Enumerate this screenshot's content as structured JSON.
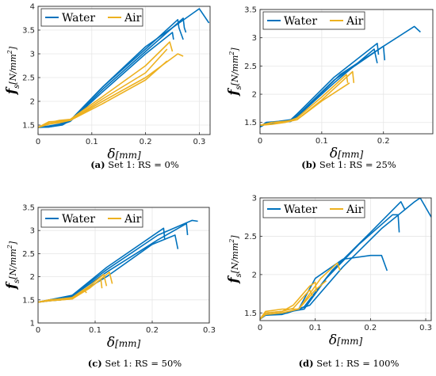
{
  "colors": {
    "water": "#0072BD",
    "air": "#EDB120",
    "axis": "#262626",
    "grid": "#e6e6e6"
  },
  "axis_text": {
    "x_symbol": "δ",
    "x_unit": "[mm]",
    "y_symbol": "f",
    "y_sub": "s",
    "y_unit_pre": "[N/mm",
    "y_unit_sup": "2",
    "y_unit_post": "]"
  },
  "chart_data": [
    {
      "id": "a",
      "type": "line",
      "caption_label": "(a)",
      "caption_text": "Set 1: RS = 0%",
      "xlim": [
        0,
        0.32
      ],
      "ylim": [
        1.3,
        4.0
      ],
      "xticks": [
        "0",
        "0.1",
        "0.2",
        "0.3"
      ],
      "xtick_values": [
        0,
        0.1,
        0.2,
        0.3
      ],
      "yticks": [
        "1.5",
        "2",
        "2.5",
        "3",
        "3.5",
        "4"
      ],
      "ytick_values": [
        1.5,
        2,
        2.5,
        3,
        3.5,
        4
      ],
      "grid": true,
      "legend": "top-left",
      "series": [
        {
          "name": "Water",
          "group": "water",
          "x": [
            0,
            0.02,
            0.04,
            0.06,
            0.12,
            0.2,
            0.26,
            0.262,
            0.27
          ],
          "y": [
            1.45,
            1.48,
            1.52,
            1.6,
            2.3,
            3.1,
            3.72,
            3.55,
            3.3
          ]
        },
        {
          "group": "water",
          "x": [
            0,
            0.02,
            0.04,
            0.06,
            0.12,
            0.2,
            0.27,
            0.272,
            0.275
          ],
          "y": [
            1.45,
            1.47,
            1.5,
            1.58,
            2.25,
            3.05,
            3.75,
            3.55,
            3.45
          ]
        },
        {
          "group": "water",
          "x": [
            0,
            0.02,
            0.045,
            0.06,
            0.12,
            0.2,
            0.3,
            0.318
          ],
          "y": [
            1.45,
            1.46,
            1.5,
            1.6,
            2.3,
            3.15,
            3.95,
            3.65
          ]
        },
        {
          "group": "water",
          "x": [
            0,
            0.02,
            0.04,
            0.06,
            0.12,
            0.2,
            0.25,
            0.252
          ],
          "y": [
            1.45,
            1.46,
            1.5,
            1.58,
            2.2,
            3.0,
            3.45,
            3.3
          ]
        },
        {
          "name": "Air",
          "group": "air",
          "x": [
            0,
            0.02,
            0.04,
            0.06,
            0.12,
            0.2,
            0.245,
            0.25
          ],
          "y": [
            1.45,
            1.55,
            1.6,
            1.62,
            2.1,
            2.75,
            3.25,
            3.05
          ]
        },
        {
          "group": "air",
          "x": [
            0,
            0.02,
            0.04,
            0.06,
            0.12,
            0.2,
            0.24
          ],
          "y": [
            1.45,
            1.57,
            1.58,
            1.6,
            2.05,
            2.6,
            3.1
          ]
        },
        {
          "group": "air",
          "x": [
            0,
            0.02,
            0.04,
            0.06,
            0.12,
            0.2,
            0.26,
            0.27
          ],
          "y": [
            1.45,
            1.55,
            1.57,
            1.6,
            2.0,
            2.5,
            3.0,
            2.95
          ]
        },
        {
          "group": "air",
          "x": [
            0,
            0.02,
            0.04,
            0.06,
            0.12,
            0.2,
            0.24
          ],
          "y": [
            1.45,
            1.52,
            1.55,
            1.6,
            1.95,
            2.45,
            2.85
          ]
        }
      ]
    },
    {
      "id": "b",
      "type": "line",
      "caption_label": "(b)",
      "caption_text": "Set 1: RS = 25%",
      "xlim": [
        0,
        0.28
      ],
      "ylim": [
        1.3,
        3.5
      ],
      "xticks": [
        "0",
        "0.1",
        "0.2"
      ],
      "xtick_values": [
        0,
        0.1,
        0.2
      ],
      "yticks": [
        "1.5",
        "2",
        "2.5",
        "3",
        "3.5"
      ],
      "ytick_values": [
        1.5,
        2,
        2.5,
        3,
        3.5
      ],
      "grid": true,
      "legend": "top-left",
      "series": [
        {
          "name": "Water",
          "group": "water",
          "x": [
            0,
            0.01,
            0.03,
            0.05,
            0.06,
            0.12,
            0.19,
            0.192
          ],
          "y": [
            1.42,
            1.5,
            1.52,
            1.55,
            1.65,
            2.3,
            2.9,
            2.7
          ]
        },
        {
          "group": "water",
          "x": [
            0,
            0.01,
            0.03,
            0.05,
            0.06,
            0.12,
            0.2,
            0.202
          ],
          "y": [
            1.42,
            1.5,
            1.5,
            1.55,
            1.62,
            2.25,
            2.85,
            2.6
          ]
        },
        {
          "group": "water",
          "x": [
            0,
            0.01,
            0.03,
            0.05,
            0.065,
            0.13,
            0.2,
            0.25,
            0.26
          ],
          "y": [
            1.42,
            1.48,
            1.5,
            1.52,
            1.65,
            2.35,
            2.85,
            3.2,
            3.1
          ]
        },
        {
          "group": "water",
          "x": [
            0,
            0.01,
            0.03,
            0.05,
            0.06,
            0.12,
            0.185,
            0.19
          ],
          "y": [
            1.42,
            1.48,
            1.5,
            1.52,
            1.6,
            2.2,
            2.8,
            2.55
          ]
        },
        {
          "name": "Air",
          "group": "air",
          "x": [
            0,
            0.02,
            0.04,
            0.06,
            0.1,
            0.15,
            0.152
          ],
          "y": [
            1.45,
            1.5,
            1.52,
            1.55,
            1.9,
            2.4,
            2.2
          ]
        },
        {
          "group": "air",
          "x": [
            0,
            0.02,
            0.04,
            0.06,
            0.1,
            0.14,
            0.142
          ],
          "y": [
            1.45,
            1.5,
            1.5,
            1.58,
            1.95,
            2.35,
            2.2
          ]
        },
        {
          "group": "air",
          "x": [
            0,
            0.02,
            0.04,
            0.06,
            0.1,
            0.145
          ],
          "y": [
            1.45,
            1.47,
            1.5,
            1.55,
            1.88,
            2.2
          ]
        }
      ]
    },
    {
      "id": "c",
      "type": "line",
      "caption_label": "(c)",
      "caption_text": "Set 1: RS = 50%",
      "xlim": [
        0,
        0.3
      ],
      "ylim": [
        1.0,
        3.5
      ],
      "xticks": [
        "0",
        "0.1",
        "0.2",
        "0.3"
      ],
      "xtick_values": [
        0,
        0.1,
        0.2,
        0.3
      ],
      "yticks": [
        "1",
        "1.5",
        "2",
        "2.5",
        "3",
        "3.5"
      ],
      "ytick_values": [
        1,
        1.5,
        2,
        2.5,
        3,
        3.5
      ],
      "grid": true,
      "legend": "top-left",
      "series": [
        {
          "name": "Water",
          "group": "water",
          "x": [
            0,
            0.02,
            0.04,
            0.06,
            0.12,
            0.22,
            0.222
          ],
          "y": [
            1.45,
            1.5,
            1.52,
            1.6,
            2.2,
            3.05,
            2.8
          ]
        },
        {
          "group": "water",
          "x": [
            0,
            0.02,
            0.04,
            0.06,
            0.12,
            0.21,
            0.27,
            0.28
          ],
          "y": [
            1.45,
            1.5,
            1.55,
            1.6,
            2.15,
            2.9,
            3.22,
            3.2
          ]
        },
        {
          "group": "water",
          "x": [
            0,
            0.02,
            0.04,
            0.06,
            0.12,
            0.21,
            0.26,
            0.262
          ],
          "y": [
            1.45,
            1.48,
            1.5,
            1.58,
            2.1,
            2.8,
            3.15,
            2.9
          ]
        },
        {
          "group": "water",
          "x": [
            0,
            0.02,
            0.04,
            0.06,
            0.12,
            0.2,
            0.24,
            0.245
          ],
          "y": [
            1.45,
            1.48,
            1.5,
            1.56,
            2.0,
            2.7,
            2.9,
            2.6
          ]
        },
        {
          "name": "Air",
          "group": "air",
          "x": [
            0,
            0.02,
            0.04,
            0.06,
            0.09,
            0.115,
            0.12
          ],
          "y": [
            1.45,
            1.5,
            1.5,
            1.55,
            1.8,
            2.05,
            1.8
          ]
        },
        {
          "group": "air",
          "x": [
            0,
            0.02,
            0.04,
            0.06,
            0.1,
            0.125,
            0.13
          ],
          "y": [
            1.45,
            1.48,
            1.5,
            1.52,
            1.85,
            2.1,
            1.85
          ]
        },
        {
          "group": "air",
          "x": [
            0,
            0.02,
            0.04,
            0.06,
            0.09,
            0.11,
            0.112
          ],
          "y": [
            1.45,
            1.48,
            1.5,
            1.52,
            1.75,
            1.95,
            1.75
          ]
        },
        {
          "group": "air",
          "x": [
            0,
            0.02,
            0.04,
            0.06,
            0.08,
            0.085
          ],
          "y": [
            1.45,
            1.5,
            1.52,
            1.55,
            1.72,
            1.65
          ]
        }
      ]
    },
    {
      "id": "d",
      "type": "line",
      "caption_label": "(d)",
      "caption_text": "Set 1: RS = 100%",
      "xlim": [
        0,
        0.31
      ],
      "ylim": [
        1.4,
        3.0
      ],
      "xticks": [
        "0",
        "0.1",
        "0.2",
        "0.3"
      ],
      "xtick_values": [
        0,
        0.1,
        0.2,
        0.3
      ],
      "yticks": [
        "1.5",
        "2",
        "2.5",
        "3"
      ],
      "ytick_values": [
        1.5,
        2,
        2.5,
        3
      ],
      "grid": true,
      "legend": "top-left",
      "series": [
        {
          "name": "Water",
          "group": "water",
          "x": [
            0,
            0.01,
            0.04,
            0.07,
            0.1,
            0.15,
            0.2,
            0.22,
            0.23
          ],
          "y": [
            1.42,
            1.47,
            1.48,
            1.55,
            1.95,
            2.2,
            2.25,
            2.25,
            2.05
          ]
        },
        {
          "group": "water",
          "x": [
            0,
            0.01,
            0.04,
            0.08,
            0.12,
            0.18,
            0.24,
            0.25,
            0.252
          ],
          "y": [
            1.42,
            1.48,
            1.5,
            1.55,
            1.95,
            2.4,
            2.78,
            2.78,
            2.55
          ]
        },
        {
          "group": "water",
          "x": [
            0,
            0.01,
            0.05,
            0.09,
            0.15,
            0.22,
            0.28,
            0.29,
            0.31
          ],
          "y": [
            1.42,
            1.48,
            1.5,
            1.6,
            2.1,
            2.6,
            2.95,
            3.0,
            2.75
          ]
        },
        {
          "group": "water",
          "x": [
            0,
            0.01,
            0.05,
            0.08,
            0.13,
            0.2,
            0.255,
            0.262
          ],
          "y": [
            1.42,
            1.47,
            1.5,
            1.58,
            2.05,
            2.55,
            2.95,
            2.85
          ]
        },
        {
          "name": "Air",
          "group": "air",
          "x": [
            0,
            0.01,
            0.04,
            0.06,
            0.09,
            0.1,
            0.102
          ],
          "y": [
            1.42,
            1.5,
            1.52,
            1.6,
            1.85,
            1.9,
            1.78
          ]
        },
        {
          "group": "air",
          "x": [
            0,
            0.01,
            0.04,
            0.07,
            0.11,
            0.14,
            0.145
          ],
          "y": [
            1.42,
            1.52,
            1.55,
            1.55,
            1.95,
            2.15,
            2.05
          ]
        },
        {
          "group": "air",
          "x": [
            0,
            0.01,
            0.04,
            0.07,
            0.1,
            0.12
          ],
          "y": [
            1.42,
            1.48,
            1.5,
            1.55,
            1.8,
            1.92
          ]
        },
        {
          "group": "air",
          "x": [
            0,
            0.01,
            0.04,
            0.06,
            0.09,
            0.095
          ],
          "y": [
            1.42,
            1.5,
            1.52,
            1.56,
            1.8,
            1.72
          ]
        }
      ]
    }
  ]
}
